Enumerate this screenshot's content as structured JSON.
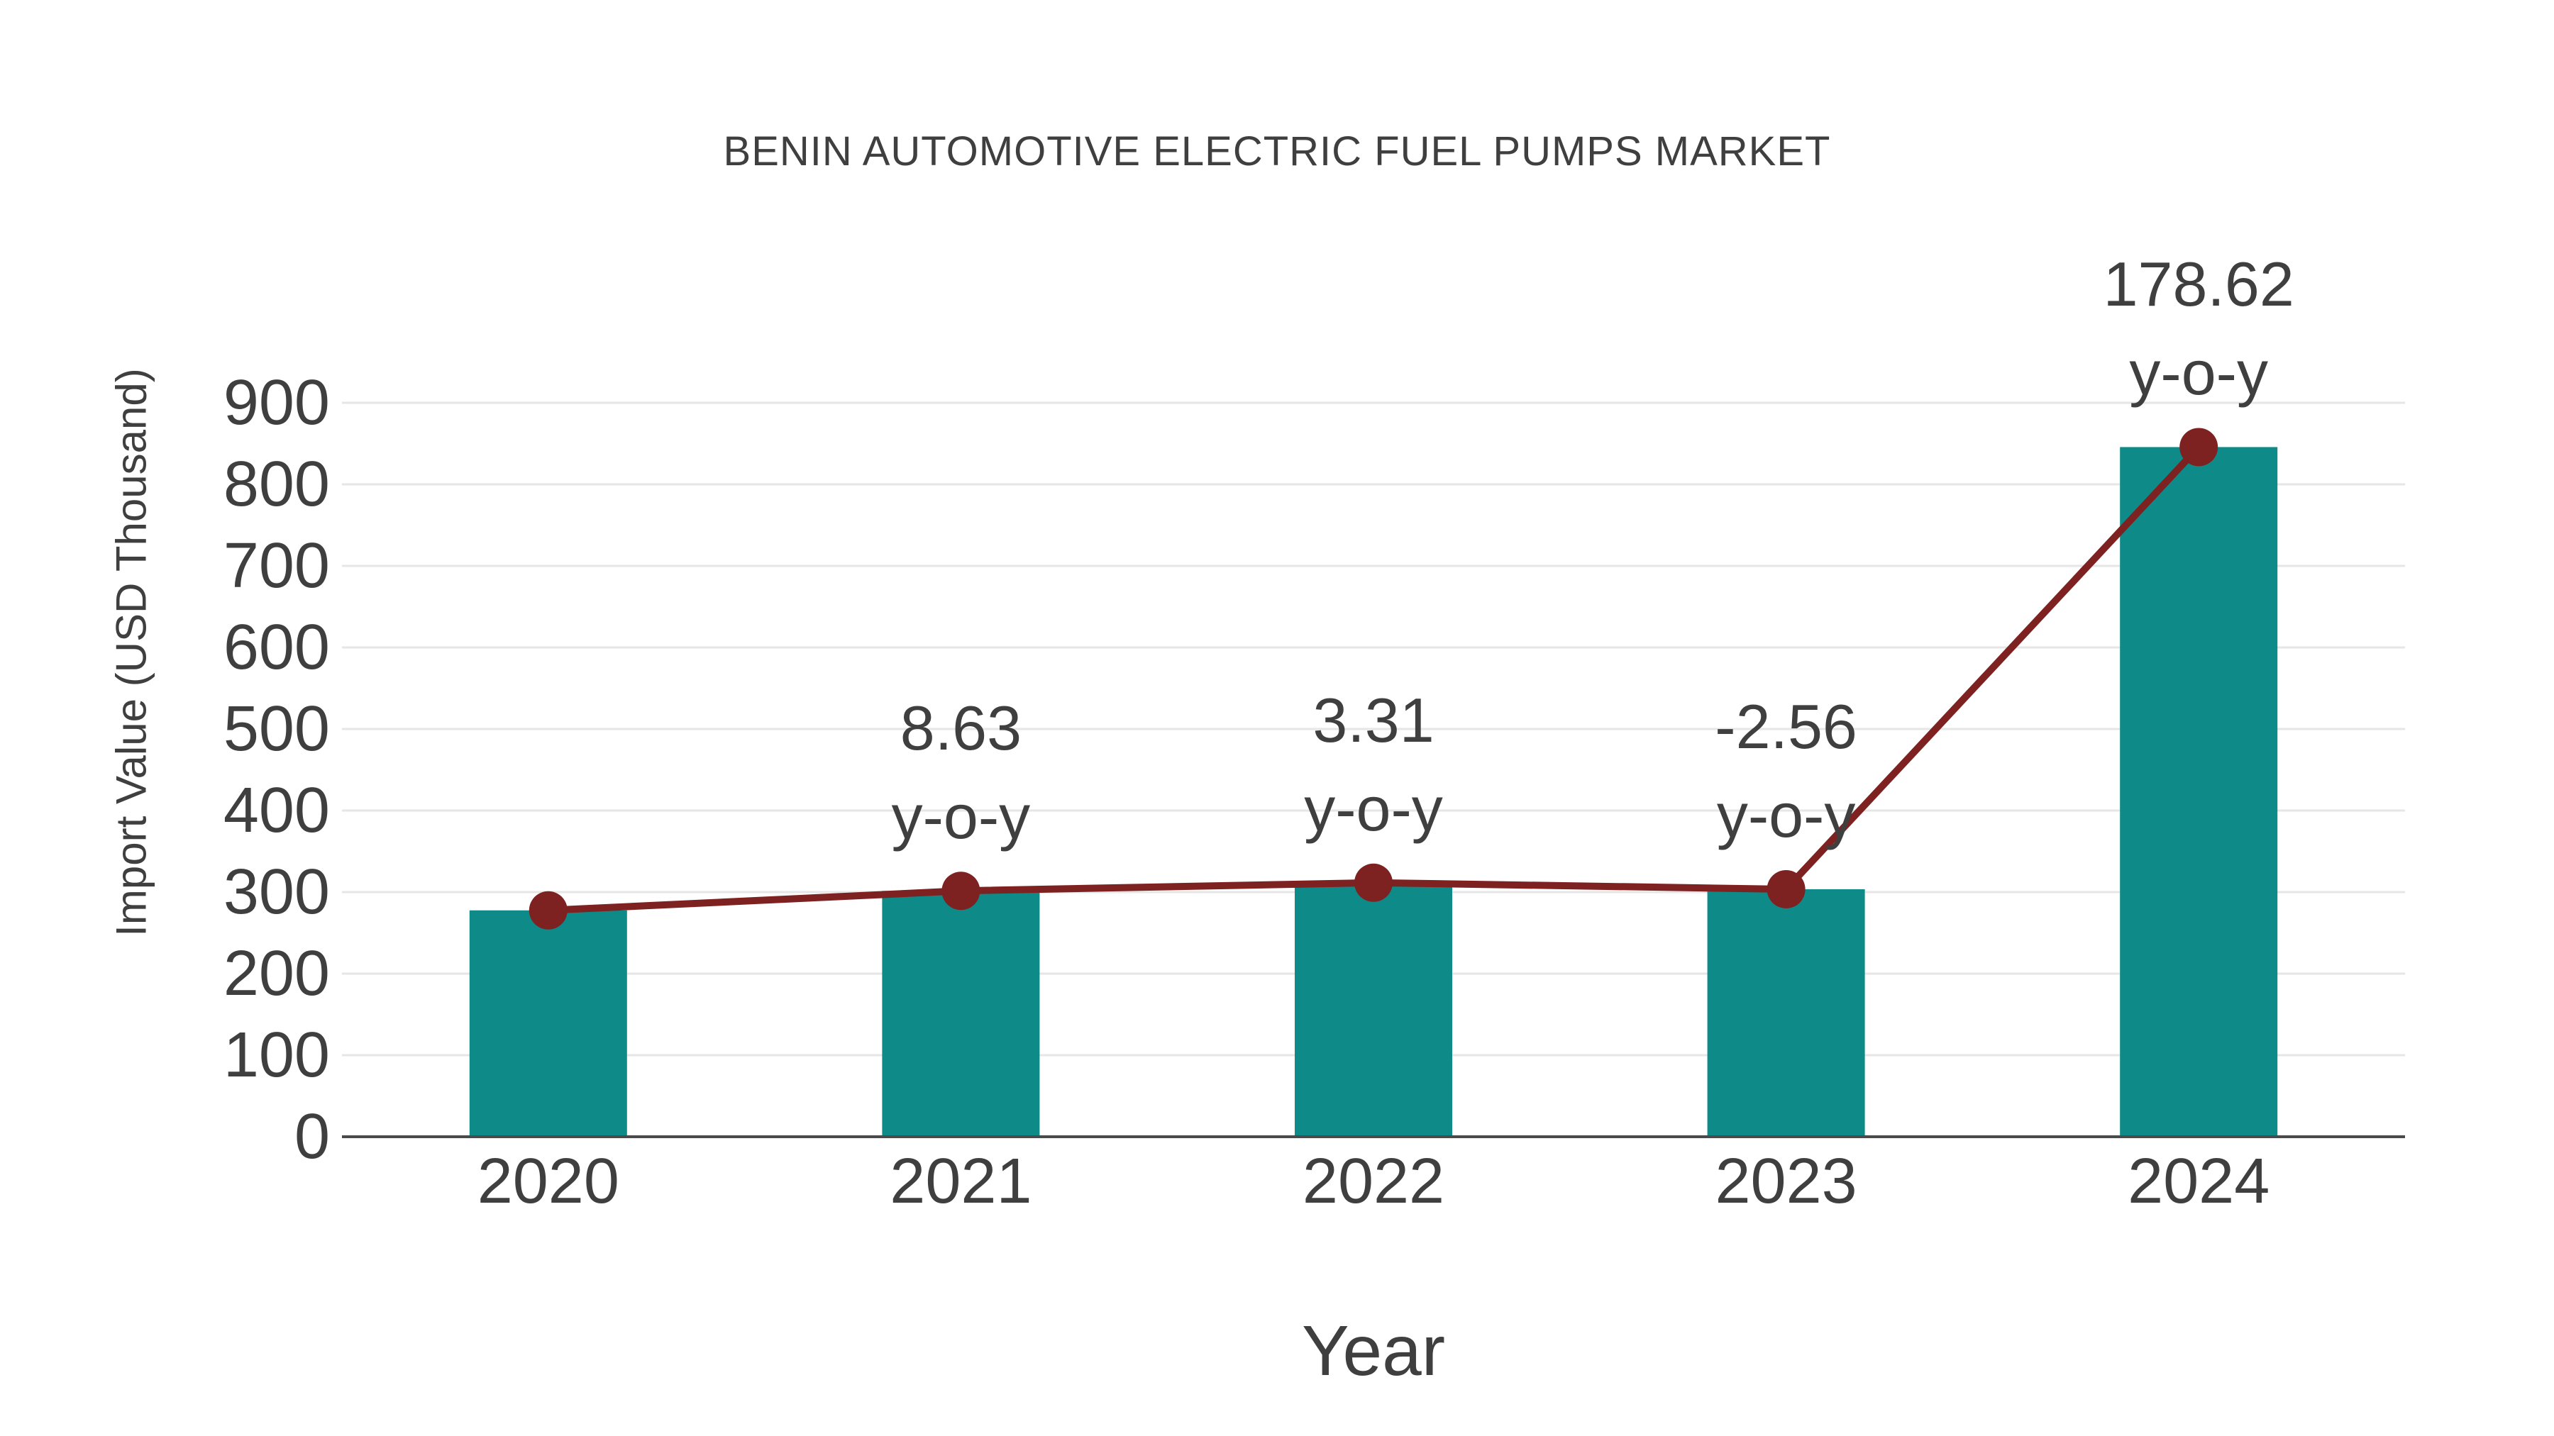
{
  "chart_data": {
    "type": "bar",
    "title": "BENIN AUTOMOTIVE ELECTRIC FUEL PUMPS MARKET",
    "xlabel": "Year",
    "ylabel": "Import Value (USD Thousand)",
    "categories": [
      "2020",
      "2021",
      "2022",
      "2023",
      "2024"
    ],
    "series": [
      {
        "name": "Import Value bars",
        "type": "bar",
        "color": "#0e8a89",
        "values": [
          277.6,
          301.5,
          311.5,
          303.5,
          845.7
        ]
      },
      {
        "name": "Import Value trend line",
        "type": "line",
        "color": "#7e2121",
        "values": [
          277.6,
          301.5,
          311.5,
          303.5,
          845.7
        ]
      }
    ],
    "annotations": [
      {
        "category": "2021",
        "value": "8.63",
        "suffix": "y-o-y"
      },
      {
        "category": "2022",
        "value": "3.31",
        "suffix": "y-o-y"
      },
      {
        "category": "2023",
        "value": "-2.56",
        "suffix": "y-o-y"
      },
      {
        "category": "2024",
        "value": "178.62",
        "suffix": "y-o-y"
      }
    ],
    "yticks": [
      0,
      100,
      200,
      300,
      400,
      500,
      600,
      700,
      800,
      900
    ],
    "ylim": [
      0,
      900
    ],
    "grid": true,
    "legend_position": "none",
    "colors": {
      "bar": "#0e8a89",
      "line": "#7e2121",
      "marker": "#7e2121",
      "text": "#3f3f3f",
      "gridline": "#e6e6e6",
      "axis_line": "#4a4a4a",
      "background": "#ffffff"
    }
  }
}
